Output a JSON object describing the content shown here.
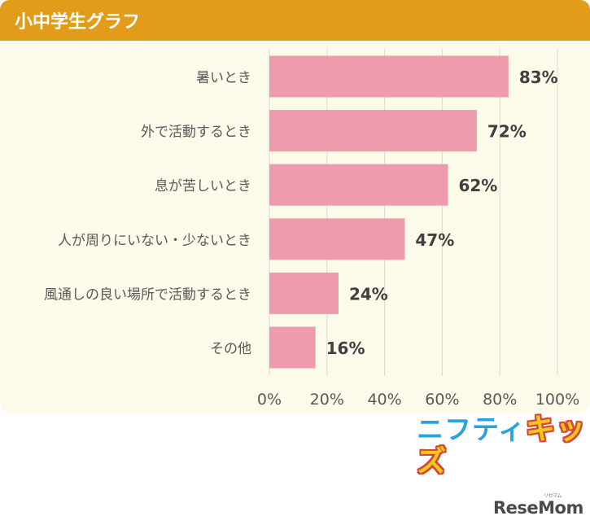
{
  "header": {
    "title": "小中学生グラフ"
  },
  "chart_data": {
    "type": "bar",
    "orientation": "horizontal",
    "categories": [
      "暑いとき",
      "外で活動するとき",
      "息が苦しいとき",
      "人が周りにいない・少ないとき",
      "風通しの良い場所で活動するとき",
      "その他"
    ],
    "values": [
      83,
      72,
      62,
      47,
      24,
      16
    ],
    "value_labels": [
      "83%",
      "72%",
      "62%",
      "47%",
      "24%",
      "16%"
    ],
    "xlim": [
      0,
      100
    ],
    "xticks": [
      0,
      20,
      40,
      60,
      80,
      100
    ],
    "xtick_labels": [
      "0%",
      "20%",
      "40%",
      "60%",
      "80%",
      "100%"
    ],
    "grid": true,
    "colors": {
      "bar": "#ef9bae",
      "grid": "#d9d9d9",
      "label": "#595959",
      "value": "#3f3f3f"
    }
  },
  "logos": {
    "nifty_part1": "ニフティ",
    "nifty_part2": "キッズ",
    "resemom": "ReseMom",
    "resemom_kana": "リセマム"
  }
}
